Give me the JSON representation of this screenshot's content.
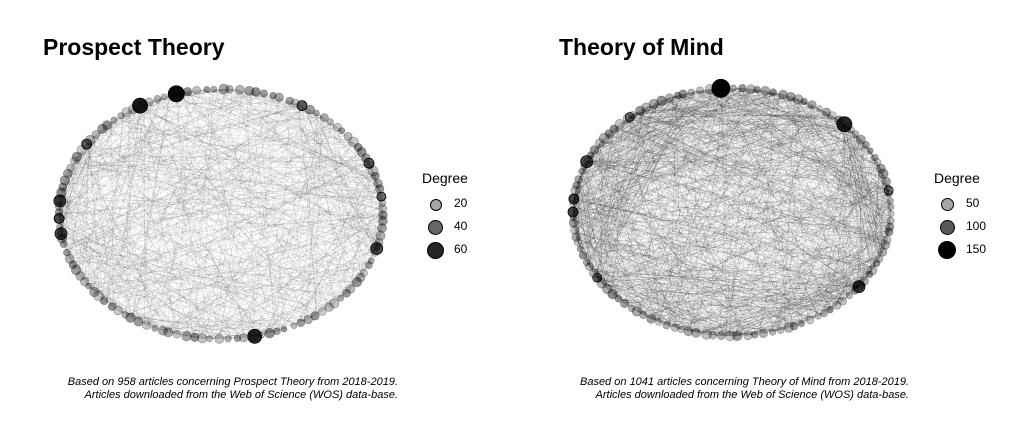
{
  "chart_data": [
    {
      "type": "network",
      "title": "Prospect Theory",
      "layout": "circle",
      "legend": {
        "title": "Degree",
        "placement": "right",
        "values": [
          20,
          40,
          60
        ]
      },
      "caption_lines": [
        "Based on 958 articles concerning Prospect Theory from 2018-2019.",
        "Articles downloaded from the Web of Science (WOS) data-base."
      ]
    },
    {
      "type": "network",
      "title": "Theory of Mind",
      "layout": "circle",
      "legend": {
        "title": "Degree",
        "placement": "right",
        "values": [
          50,
          100,
          150
        ]
      },
      "caption_lines": [
        "Based on 1041 articles concerning Theory of Mind from 2018-2019.",
        "Articles downloaded from the Web of Science (WOS) data-base."
      ]
    }
  ]
}
